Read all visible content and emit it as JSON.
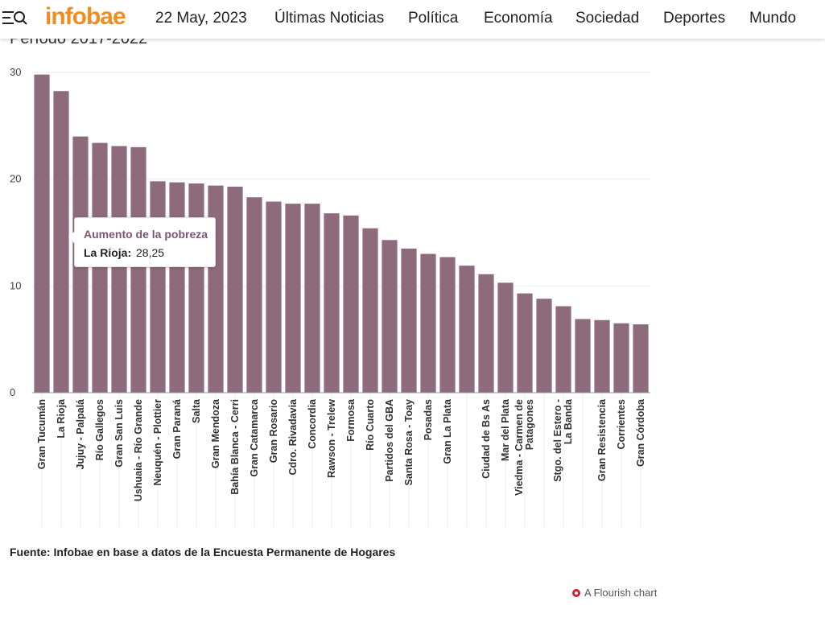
{
  "header": {
    "logo": "infobae",
    "date": "22 May, 2023",
    "nav": [
      "Últimas Noticias",
      "Política",
      "Economía",
      "Sociedad",
      "Deportes",
      "Mundo"
    ]
  },
  "chart_data": {
    "type": "bar",
    "subtitle": "Período 2017-2022",
    "categories": [
      "Gran Tucumán",
      "La Rioja",
      "Jujuy - Palpalá",
      "Río Gallegos",
      "Gran San Luis",
      "Ushuaia - Río Grande",
      "Neuquén - Plottier",
      "Gran Paraná",
      "Salta",
      "Gran Mendoza",
      "Bahía Blanca - Cerri",
      "Gran Catamarca",
      "Gran Rosario",
      "Cdro. Rivadavia",
      "Concordia",
      "Rawson - Trelew",
      "Formosa",
      "Río Cuarto",
      "Partidos del GBA",
      "Santa Rosa - Toay",
      "Posadas",
      "Gran La Plata",
      null,
      "Ciudad de Bs As",
      "Mar del Plata",
      "Viedma - Carmen de Patagones",
      null,
      "Stgo. del Estero - La Banda",
      null,
      "Gran Resistencia",
      "Corrientes",
      "Gran Córdoba"
    ],
    "values": [
      29.8,
      28.25,
      24.0,
      23.4,
      23.1,
      23.0,
      19.8,
      19.7,
      19.6,
      19.4,
      19.3,
      18.3,
      17.9,
      17.7,
      17.7,
      16.8,
      16.6,
      15.4,
      14.3,
      13.5,
      13.0,
      12.7,
      11.9,
      11.1,
      10.3,
      9.3,
      8.8,
      8.1,
      6.9,
      6.8,
      6.5,
      6.4
    ],
    "color": "#8e6a7d",
    "ylim": [
      0,
      30
    ],
    "yticks": [
      0,
      10,
      20,
      30
    ],
    "grid": true
  },
  "tooltip": {
    "title": "Aumento de la pobreza",
    "label": "La Rioja:",
    "value": "28,25"
  },
  "source": "Fuente: Infobae en base a datos de la Encuesta Permanente de Hogares",
  "credit": "A Flourish chart"
}
